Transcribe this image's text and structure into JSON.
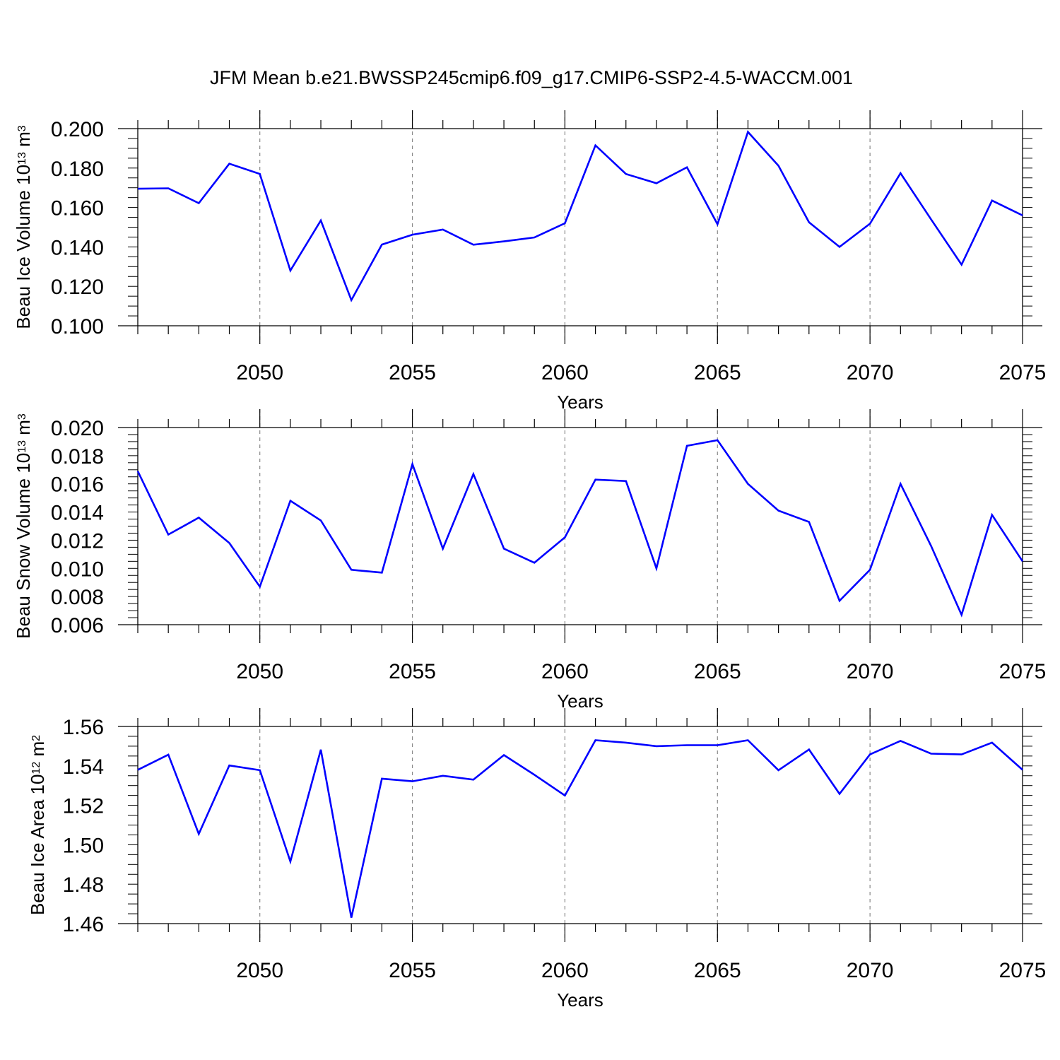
{
  "title": "JFM Mean b.e21.BWSSP245cmip6.f09_g17.CMIP6-SSP2-4.5-WACCM.001",
  "colors": {
    "series": "#0000ff",
    "axis": "#000000",
    "gridline": "#888888",
    "background": "#ffffff"
  },
  "chart_data": [
    {
      "type": "line",
      "ylabel": {
        "prefix": "Beau Ice Volume 10",
        "exponent": "13",
        "unit": " m",
        "unit_exponent": "3"
      },
      "xlabel": "Years",
      "xlim": [
        2046,
        2075
      ],
      "ylim": [
        0.1,
        0.2
      ],
      "yticks": [
        0.1,
        0.12,
        0.14,
        0.16,
        0.18,
        0.2
      ],
      "ytick_labels": [
        "0.100",
        "0.120",
        "0.140",
        "0.160",
        "0.180",
        "0.200"
      ],
      "y_minor_step": 0.005,
      "xticks": [
        2050,
        2055,
        2060,
        2065,
        2070,
        2075
      ],
      "xtick_labels": [
        "2050",
        "2055",
        "2060",
        "2065",
        "2070",
        "2075"
      ],
      "vgrid": [
        2050,
        2055,
        2060,
        2065,
        2070
      ],
      "series": [
        {
          "name": "Beau Ice Volume",
          "x": [
            2046,
            2047,
            2048,
            2049,
            2050,
            2051,
            2052,
            2053,
            2054,
            2055,
            2056,
            2057,
            2058,
            2059,
            2060,
            2061,
            2062,
            2063,
            2064,
            2065,
            2066,
            2067,
            2068,
            2069,
            2070,
            2071,
            2072,
            2073,
            2074,
            2075
          ],
          "values": [
            0.1695,
            0.1697,
            0.1622,
            0.1822,
            0.177,
            0.128,
            0.1534,
            0.113,
            0.1412,
            0.1462,
            0.1488,
            0.1411,
            0.1428,
            0.1448,
            0.152,
            0.1915,
            0.177,
            0.1723,
            0.1804,
            0.1515,
            0.1983,
            0.1812,
            0.1525,
            0.14,
            0.1518,
            0.1774,
            0.154,
            0.131,
            0.1635,
            0.156
          ]
        }
      ]
    },
    {
      "type": "line",
      "ylabel": {
        "prefix": "Beau Snow Volume 10",
        "exponent": "13",
        "unit": " m",
        "unit_exponent": "3"
      },
      "xlabel": "Years",
      "xlim": [
        2046,
        2075
      ],
      "ylim": [
        0.006,
        0.02
      ],
      "yticks": [
        0.006,
        0.008,
        0.01,
        0.012,
        0.014,
        0.016,
        0.018,
        0.02
      ],
      "ytick_labels": [
        "0.006",
        "0.008",
        "0.010",
        "0.012",
        "0.014",
        "0.016",
        "0.018",
        "0.020"
      ],
      "y_minor_step": 0.0005,
      "xticks": [
        2050,
        2055,
        2060,
        2065,
        2070,
        2075
      ],
      "xtick_labels": [
        "2050",
        "2055",
        "2060",
        "2065",
        "2070",
        "2075"
      ],
      "vgrid": [
        2050,
        2055,
        2060,
        2065,
        2070
      ],
      "series": [
        {
          "name": "Beau Snow Volume",
          "x": [
            2046,
            2047,
            2048,
            2049,
            2050,
            2051,
            2052,
            2053,
            2054,
            2055,
            2056,
            2057,
            2058,
            2059,
            2060,
            2061,
            2062,
            2063,
            2064,
            2065,
            2066,
            2067,
            2068,
            2069,
            2070,
            2071,
            2072,
            2073,
            2074,
            2075
          ],
          "values": [
            0.0169,
            0.0124,
            0.0136,
            0.0118,
            0.0087,
            0.0148,
            0.0134,
            0.0099,
            0.0097,
            0.0174,
            0.0114,
            0.0167,
            0.0114,
            0.0104,
            0.0122,
            0.0163,
            0.0162,
            0.01,
            0.0187,
            0.0191,
            0.016,
            0.0141,
            0.0133,
            0.0077,
            0.0099,
            0.016,
            0.0116,
            0.0067,
            0.0138,
            0.0105
          ]
        }
      ]
    },
    {
      "type": "line",
      "ylabel": {
        "prefix": "Beau Ice Area 10",
        "exponent": "12",
        "unit": " m",
        "unit_exponent": "2"
      },
      "xlabel": "Years",
      "xlim": [
        2046,
        2075
      ],
      "ylim": [
        1.46,
        1.56
      ],
      "yticks": [
        1.46,
        1.48,
        1.5,
        1.52,
        1.54,
        1.56
      ],
      "ytick_labels": [
        "1.46",
        "1.48",
        "1.50",
        "1.52",
        "1.54",
        "1.56"
      ],
      "y_minor_step": 0.005,
      "xticks": [
        2050,
        2055,
        2060,
        2065,
        2070,
        2075
      ],
      "xtick_labels": [
        "2050",
        "2055",
        "2060",
        "2065",
        "2070",
        "2075"
      ],
      "vgrid": [
        2050,
        2055,
        2060,
        2065,
        2070
      ],
      "series": [
        {
          "name": "Beau Ice Area",
          "x": [
            2046,
            2047,
            2048,
            2049,
            2050,
            2051,
            2052,
            2053,
            2054,
            2055,
            2056,
            2057,
            2058,
            2059,
            2060,
            2061,
            2062,
            2063,
            2064,
            2065,
            2066,
            2067,
            2068,
            2069,
            2070,
            2071,
            2072,
            2073,
            2074,
            2075
          ],
          "values": [
            1.538,
            1.5457,
            1.5055,
            1.5402,
            1.5378,
            1.4915,
            1.5482,
            1.463,
            1.5335,
            1.5322,
            1.535,
            1.533,
            1.5455,
            1.5355,
            1.525,
            1.553,
            1.5518,
            1.55,
            1.5505,
            1.5505,
            1.553,
            1.5378,
            1.5483,
            1.5258,
            1.5458,
            1.5527,
            1.5462,
            1.5458,
            1.5518,
            1.538
          ]
        }
      ]
    }
  ]
}
